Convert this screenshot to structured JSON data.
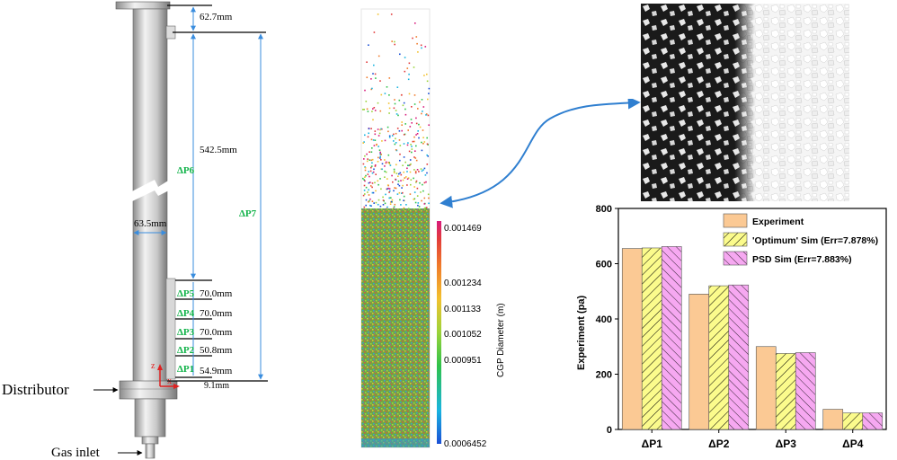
{
  "column": {
    "dimensions": [
      "62.7mm",
      "542.5mm",
      "63.5mm",
      "70.0mm",
      "70.0mm",
      "70.0mm",
      "50.8mm",
      "54.9mm",
      "9.1mm"
    ],
    "pressure_taps": [
      "ΔP6",
      "ΔP7",
      "ΔP5",
      "ΔP4",
      "ΔP3",
      "ΔP2",
      "ΔP1"
    ],
    "distributor_label": "Distributor",
    "gas_inlet_label": "Gas inlet",
    "axis_z": "z",
    "axis_x": "x"
  },
  "colorbar": {
    "title": "CGP Diameter (m)",
    "ticks": [
      "0.001469",
      "0.001234",
      "0.001133",
      "0.001052",
      "0.000951",
      "0.0006452"
    ],
    "colors": [
      "#1a4fd6",
      "#19b4e0",
      "#2fc24a",
      "#9bd33a",
      "#f2c12e",
      "#f07a2a",
      "#e23b3b",
      "#d81b7c"
    ]
  },
  "chart_data": {
    "type": "bar",
    "categories": [
      "ΔP1",
      "ΔP2",
      "ΔP3",
      "ΔP4"
    ],
    "ylabel": "Experiment (pa)",
    "ylim": [
      0,
      800
    ],
    "yticks": [
      "0",
      "200",
      "400",
      "600",
      "800"
    ],
    "legend_position": "top-right",
    "series": [
      {
        "name": "Experiment",
        "values": [
          655,
          490,
          300,
          73
        ],
        "color": "#fbc994",
        "pattern": "solid"
      },
      {
        "name": "'Optimum' Sim (Err=7.878%)",
        "values": [
          657,
          520,
          275,
          60
        ],
        "color": "#fbfb8c",
        "pattern": "hatch"
      },
      {
        "name": "PSD Sim (Err=7.883%)",
        "values": [
          662,
          523,
          278,
          60
        ],
        "color": "#f6a8f1",
        "pattern": "cross-hatch"
      }
    ]
  }
}
